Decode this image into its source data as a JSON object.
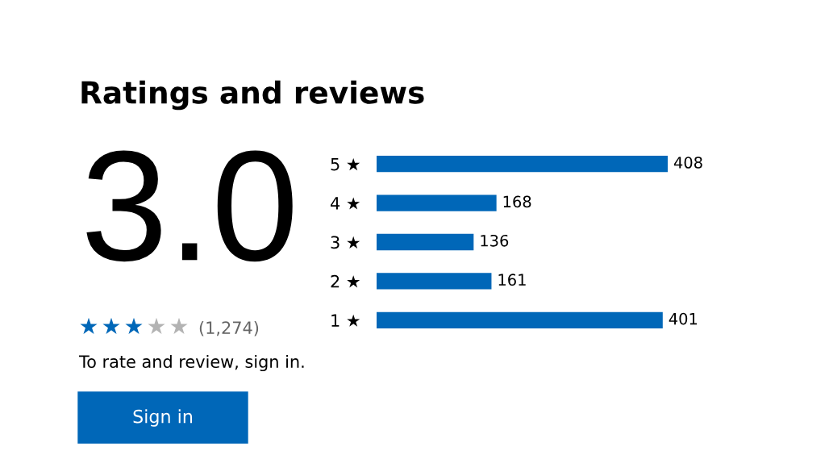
{
  "chart_data": {
    "type": "bar",
    "orientation": "horizontal",
    "title": "Ratings and reviews",
    "categories": [
      "5 ★",
      "4 ★",
      "3 ★",
      "2 ★",
      "1 ★"
    ],
    "values": [
      408,
      168,
      136,
      161,
      401
    ],
    "color": "#0067b8",
    "data_labels": true,
    "grid": false,
    "legend": false,
    "annotations": [
      "3.0",
      "(1,274)",
      "To rate and review, sign in.",
      "Sign in"
    ]
  }
}
